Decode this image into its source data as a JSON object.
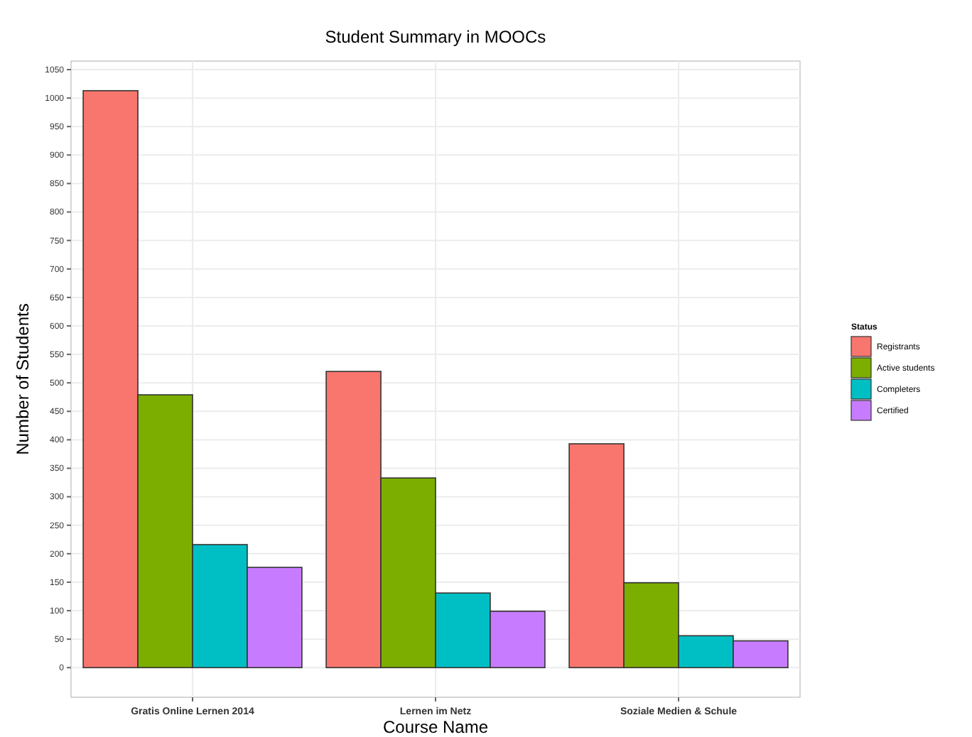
{
  "chart_data": {
    "type": "bar",
    "title": "Student Summary in MOOCs",
    "xlabel": "Course Name",
    "ylabel": "Number of Students",
    "legend_title": "Status",
    "categories": [
      "Gratis Online Lernen 2014",
      "Lernen im Netz",
      "Soziale Medien & Schule"
    ],
    "series": [
      {
        "name": "Registrants",
        "color": "#f8766d",
        "values": [
          1013,
          520,
          393
        ]
      },
      {
        "name": "Active students",
        "color": "#7cae00",
        "values": [
          479,
          333,
          149
        ]
      },
      {
        "name": "Completers",
        "color": "#00bfc4",
        "values": [
          216,
          131,
          56
        ]
      },
      {
        "name": "Certified",
        "color": "#c77cff",
        "values": [
          176,
          99,
          47
        ]
      }
    ],
    "ylim": [
      -52,
      1065
    ],
    "yticks": [
      0,
      50,
      100,
      150,
      200,
      250,
      300,
      350,
      400,
      450,
      500,
      550,
      600,
      650,
      700,
      750,
      800,
      850,
      900,
      950,
      1000,
      1050
    ],
    "grid": true,
    "legend": "right"
  }
}
